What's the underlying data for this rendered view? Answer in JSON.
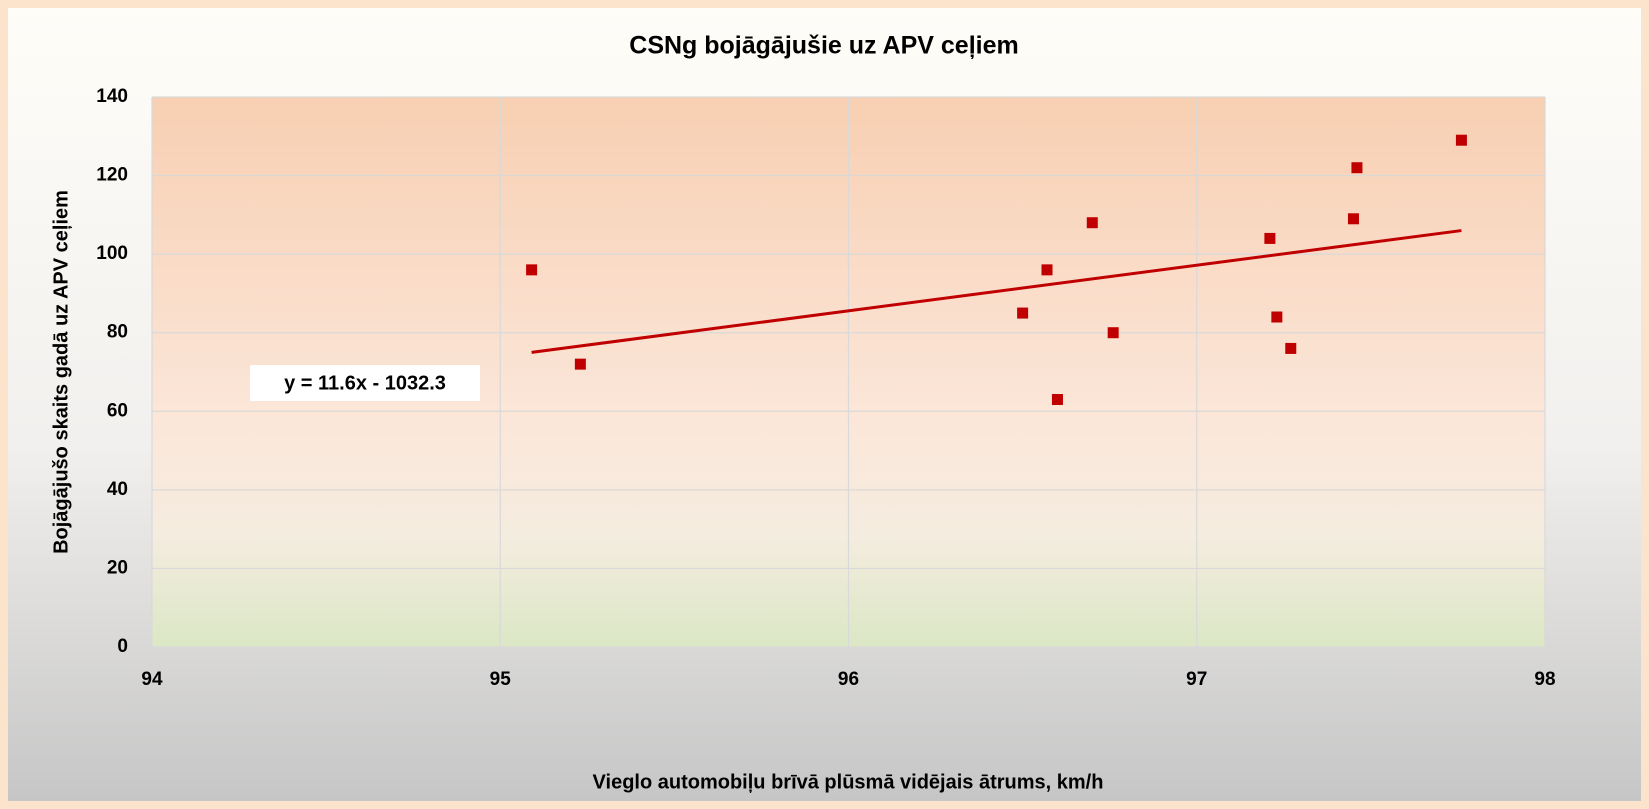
{
  "chart_data": {
    "type": "scatter",
    "title": "CSNg bojāgājušie uz APV ceļiem",
    "x_label": "Vieglo automobiļu brīvā plūsmā vidējais ātrums, km/h",
    "y_label": "Bojāgājušo skaits gadā uz APV ceļiem",
    "x": [
      95.09,
      95.23,
      96.5,
      96.57,
      96.6,
      96.7,
      96.76,
      97.21,
      97.23,
      97.27,
      97.45,
      97.46,
      97.76
    ],
    "values": [
      96,
      72,
      85,
      96,
      63,
      108,
      80,
      104,
      84,
      76,
      109,
      122,
      129
    ],
    "color": "#c00000",
    "trendline": {
      "x": [
        95.09,
        97.76
      ],
      "values": [
        75,
        106
      ],
      "color": "#c00000",
      "label": "y = 11.6x - 1032.3"
    },
    "xlim": [
      94,
      98
    ],
    "xticks": [
      94,
      95,
      96,
      97,
      98
    ],
    "ylim": [
      0,
      140
    ],
    "yticks": [
      0,
      20,
      40,
      60,
      80,
      100,
      120,
      140
    ],
    "grid": true
  }
}
